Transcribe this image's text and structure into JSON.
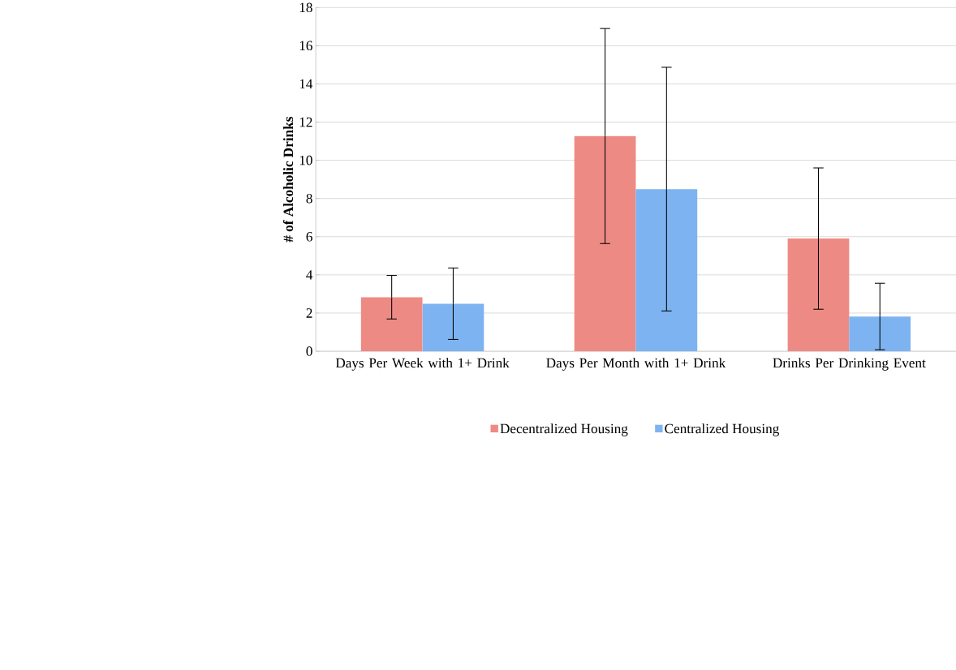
{
  "chart_data": {
    "type": "bar",
    "ylabel": "# of Alcoholic Drinks",
    "categories": [
      "Days Per Week with 1+ Drink",
      "Days Per Month with 1+ Drink",
      "Drinks Per Drinking Event"
    ],
    "series": [
      {
        "name": "Decentralized Housing",
        "color": "#ee8a84",
        "values": [
          2.83,
          11.27,
          5.9
        ],
        "errors": [
          1.14,
          5.63,
          3.7
        ]
      },
      {
        "name": "Centralized Housing",
        "color": "#7db3f0",
        "values": [
          2.49,
          8.49,
          1.82
        ],
        "errors": [
          1.87,
          6.38,
          1.74
        ]
      }
    ],
    "ylim": [
      0,
      18
    ],
    "yticks": [
      0,
      2,
      4,
      6,
      8,
      10,
      12,
      14,
      16,
      18
    ],
    "grid": "y",
    "legend": "bottom"
  }
}
